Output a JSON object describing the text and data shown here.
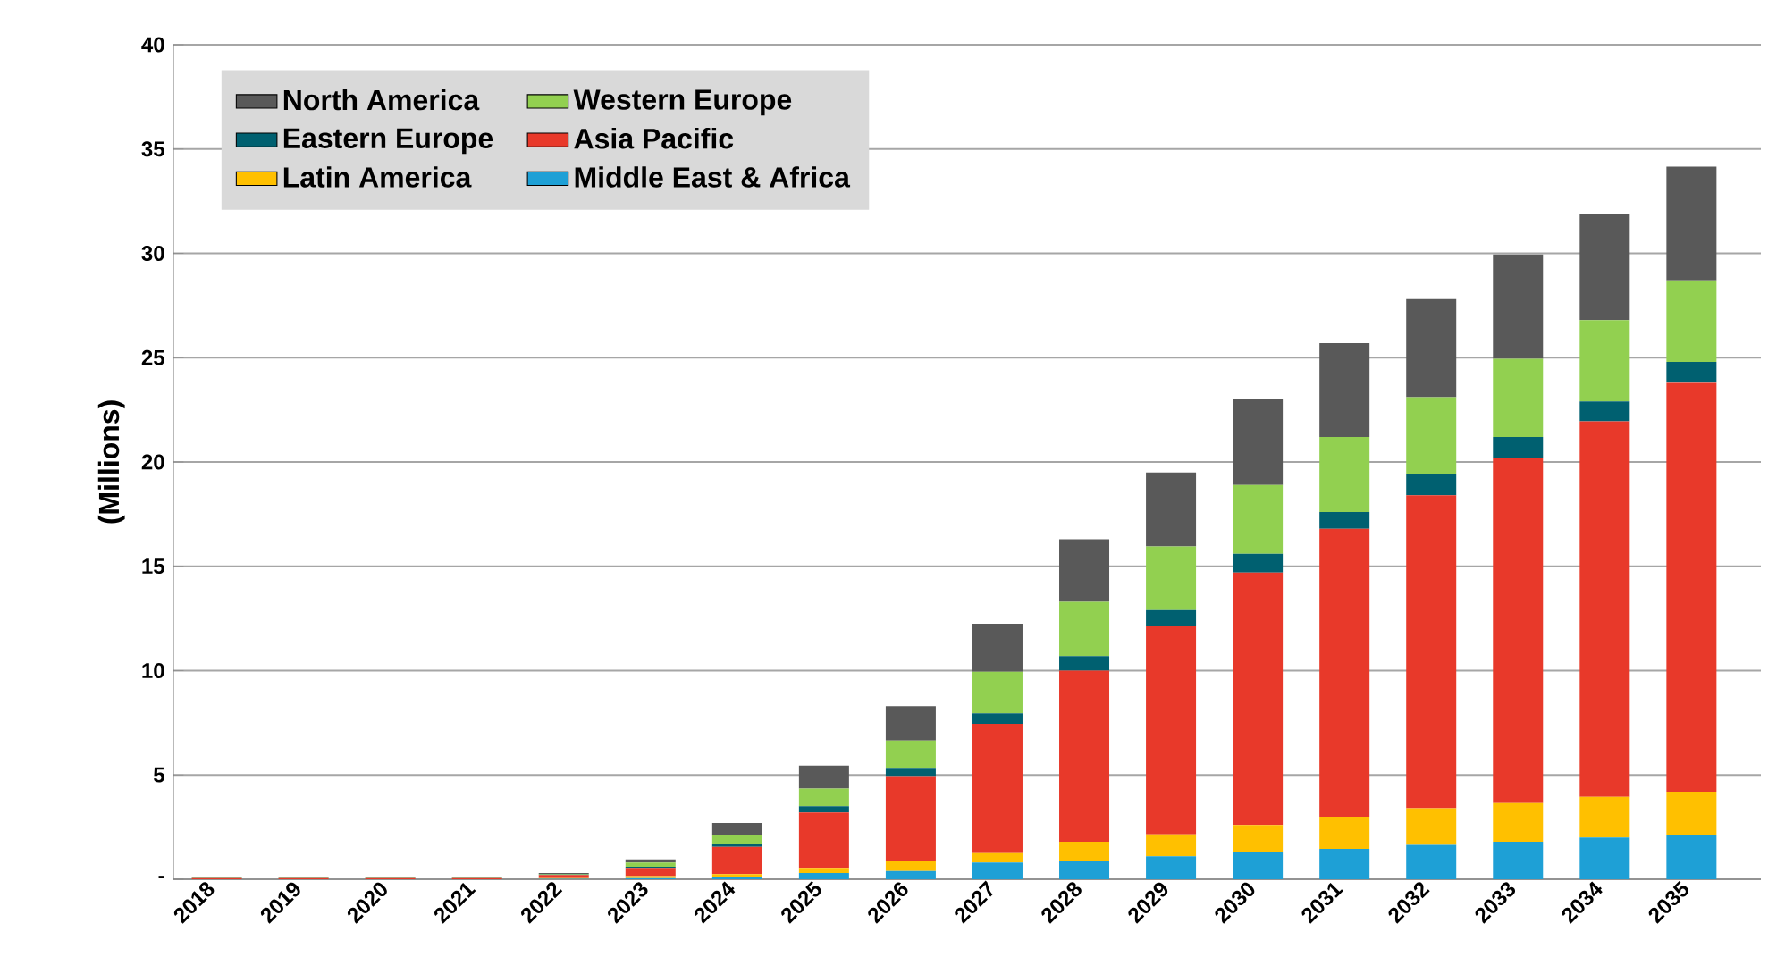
{
  "chart_data": {
    "type": "bar",
    "stacked": true,
    "ylabel": "(Millions)",
    "categories": [
      "2018",
      "2019",
      "2020",
      "2021",
      "2022",
      "2023",
      "2024",
      "2025",
      "2026",
      "2027",
      "2028",
      "2029",
      "2030",
      "2031",
      "2032",
      "2033",
      "2034",
      "2035"
    ],
    "series": [
      {
        "name": "Middle East & Africa",
        "color": "#1ea0d6",
        "values": [
          0,
          0,
          0,
          0,
          0.02,
          0.05,
          0.1,
          0.3,
          0.4,
          0.8,
          0.9,
          1.1,
          1.3,
          1.45,
          1.65,
          1.8,
          2.0,
          2.1
        ]
      },
      {
        "name": "Latin America",
        "color": "#ffc000",
        "values": [
          0,
          0,
          0,
          0,
          0.03,
          0.1,
          0.15,
          0.25,
          0.5,
          0.45,
          0.9,
          1.05,
          1.3,
          1.55,
          1.75,
          1.85,
          1.95,
          2.1
        ]
      },
      {
        "name": "Asia Pacific",
        "color": "#e8392a",
        "values": [
          0.05,
          0.05,
          0.05,
          0.05,
          0.15,
          0.4,
          1.3,
          2.65,
          4.05,
          6.2,
          8.2,
          10.0,
          12.1,
          13.8,
          15.0,
          16.55,
          18.0,
          19.6
        ]
      },
      {
        "name": "Eastern Europe",
        "color": "#006070",
        "values": [
          0.01,
          0.01,
          0.01,
          0.01,
          0.02,
          0.05,
          0.15,
          0.3,
          0.35,
          0.5,
          0.7,
          0.75,
          0.9,
          0.8,
          1.0,
          1.0,
          0.95,
          1.0
        ]
      },
      {
        "name": "Western Europe",
        "color": "#92d050",
        "values": [
          0.02,
          0.02,
          0.02,
          0.02,
          0.04,
          0.2,
          0.4,
          0.85,
          1.35,
          2.0,
          2.6,
          3.05,
          3.3,
          3.6,
          3.7,
          3.75,
          3.9,
          3.9
        ]
      },
      {
        "name": "North America",
        "color": "#595959",
        "values": [
          0.02,
          0.02,
          0.02,
          0.02,
          0.04,
          0.15,
          0.6,
          1.1,
          1.65,
          2.3,
          3.0,
          3.55,
          4.1,
          4.5,
          4.7,
          5.0,
          5.1,
          5.45
        ]
      }
    ],
    "ylim": [
      0,
      40
    ],
    "yticks": [
      {
        "value": 0,
        "label": "-"
      },
      5,
      10,
      15,
      20,
      25,
      30,
      35,
      40
    ],
    "grid": "y",
    "legend": "top left"
  }
}
